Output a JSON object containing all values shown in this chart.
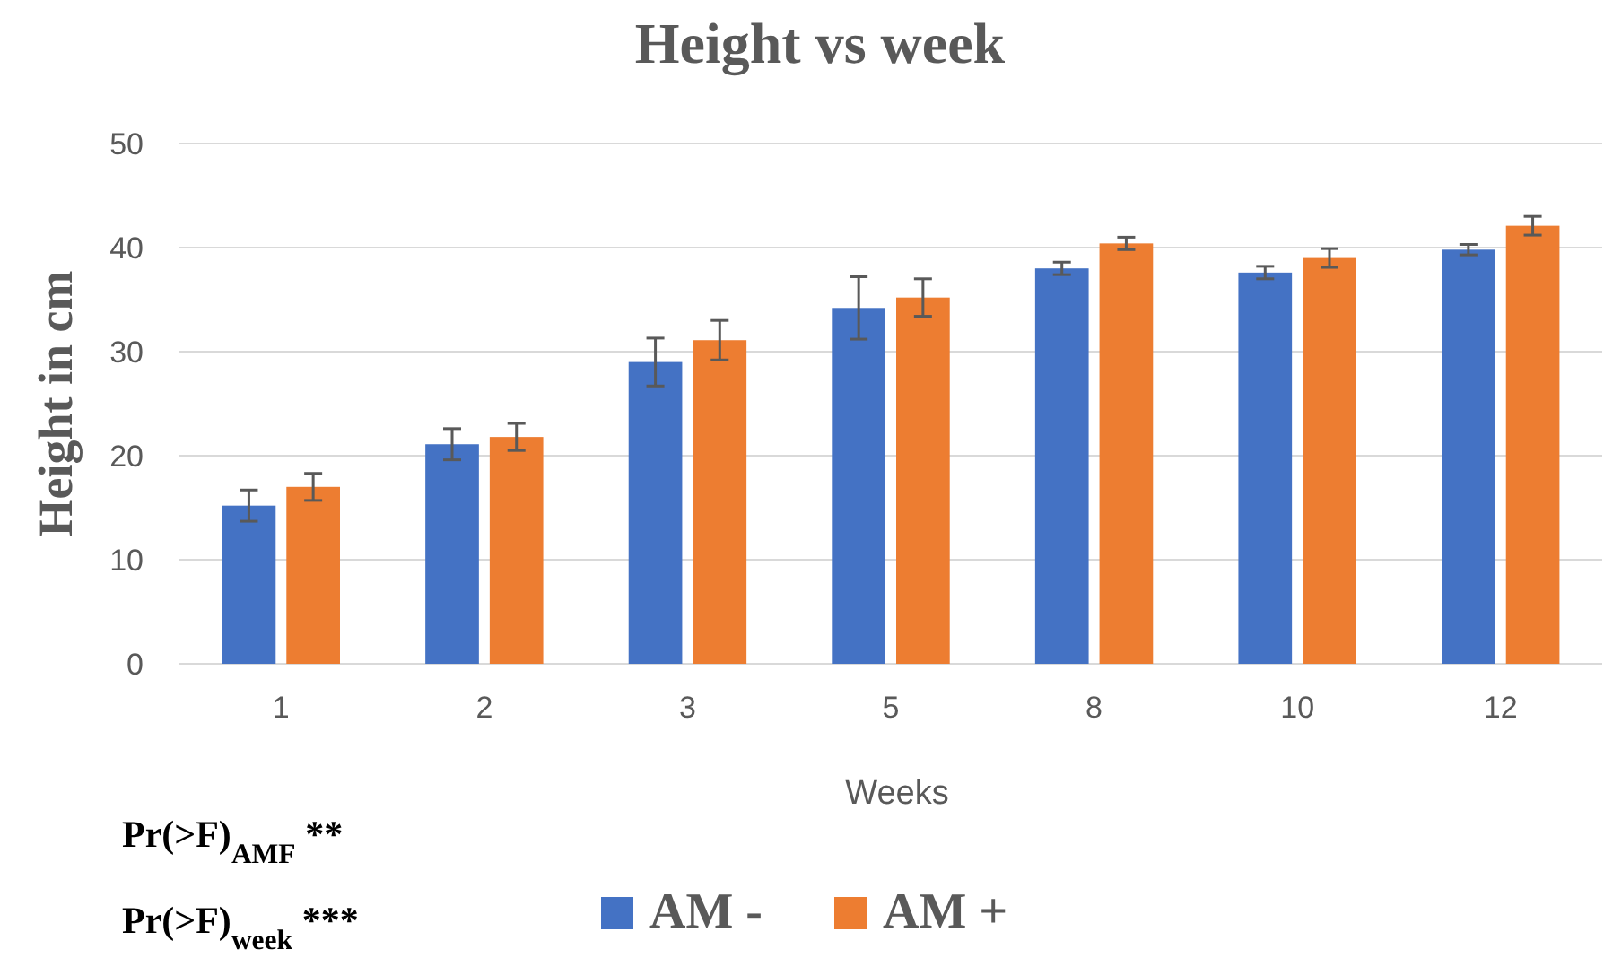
{
  "chart_data": {
    "type": "bar",
    "title": "Height vs week",
    "xlabel": "Weeks",
    "ylabel": "Height in cm",
    "categories": [
      "1",
      "2",
      "3",
      "5",
      "8",
      "10",
      "12"
    ],
    "series": [
      {
        "name": "AM -",
        "color": "#4472c4",
        "values": [
          15.2,
          21.1,
          29.0,
          34.2,
          38.0,
          37.6,
          39.8
        ],
        "errors": [
          1.5,
          1.5,
          2.3,
          3.0,
          0.6,
          0.6,
          0.5
        ]
      },
      {
        "name": "AM +",
        "color": "#ed7d31",
        "values": [
          17.0,
          21.8,
          31.1,
          35.2,
          40.4,
          39.0,
          42.1
        ],
        "errors": [
          1.3,
          1.3,
          1.9,
          1.8,
          0.6,
          0.9,
          0.9
        ]
      }
    ],
    "ylim": [
      0,
      50
    ],
    "yticks": [
      0,
      10,
      20,
      30,
      40,
      50
    ],
    "grid": "y",
    "legend": "bottom",
    "annotations": [
      "Pr(>F)$_{AMF}$ **",
      "Pr(>F)$_{week}$ ***"
    ]
  }
}
